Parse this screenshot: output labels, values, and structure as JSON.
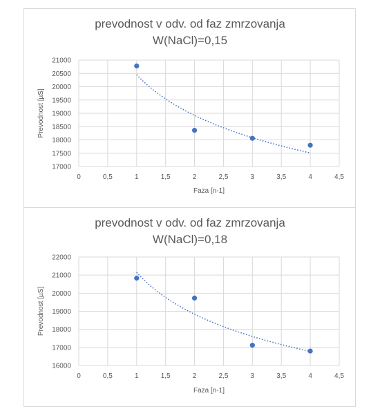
{
  "chart_data": [
    {
      "type": "scatter",
      "title_lines": [
        "prevodnost v odv. od faz zmrzovanja",
        "W(NaCl)=0,15"
      ],
      "xlabel": "Faza [n-1]",
      "ylabel": "Prevodnost [µS]",
      "xlim": [
        0,
        4.5
      ],
      "ylim": [
        17000,
        21000
      ],
      "x_ticks": [
        "0",
        "0,5",
        "1",
        "1,5",
        "2",
        "2,5",
        "3",
        "3,5",
        "4",
        "4,5"
      ],
      "y_ticks": [
        "17000",
        "17500",
        "18000",
        "18500",
        "19000",
        "19500",
        "20000",
        "20500",
        "21000"
      ],
      "grid": true,
      "points": [
        {
          "x": 1,
          "y": 20780
        },
        {
          "x": 2,
          "y": 18360
        },
        {
          "x": 3,
          "y": 18060
        },
        {
          "x": 4,
          "y": 17800
        }
      ],
      "trendline": {
        "type": "power",
        "from_x": 1,
        "to_x": 4,
        "start_y": 20450,
        "end_y": 17510
      },
      "colors": {
        "series": "#4472c4",
        "grid": "#d9d9d9",
        "text": "#595959"
      }
    },
    {
      "type": "scatter",
      "title_lines": [
        "prevodnost v odv. od faz zmrzovanja",
        "W(NaCl)=0,18"
      ],
      "xlabel": "Faza [n-1]",
      "ylabel": "Prevodnost [µS]",
      "xlim": [
        0,
        4.5
      ],
      "ylim": [
        16000,
        22000
      ],
      "x_ticks": [
        "0",
        "0,5",
        "1",
        "1,5",
        "2",
        "2,5",
        "3",
        "3,5",
        "4",
        "4,5"
      ],
      "y_ticks": [
        "16000",
        "17000",
        "18000",
        "19000",
        "20000",
        "21000",
        "22000"
      ],
      "grid": true,
      "points": [
        {
          "x": 1,
          "y": 20830
        },
        {
          "x": 2,
          "y": 19730
        },
        {
          "x": 3,
          "y": 17120
        },
        {
          "x": 4,
          "y": 16800
        }
      ],
      "trendline": {
        "type": "power",
        "from_x": 1,
        "to_x": 4,
        "start_y": 21150,
        "end_y": 16780
      },
      "colors": {
        "series": "#4472c4",
        "grid": "#d9d9d9",
        "text": "#595959"
      }
    }
  ]
}
